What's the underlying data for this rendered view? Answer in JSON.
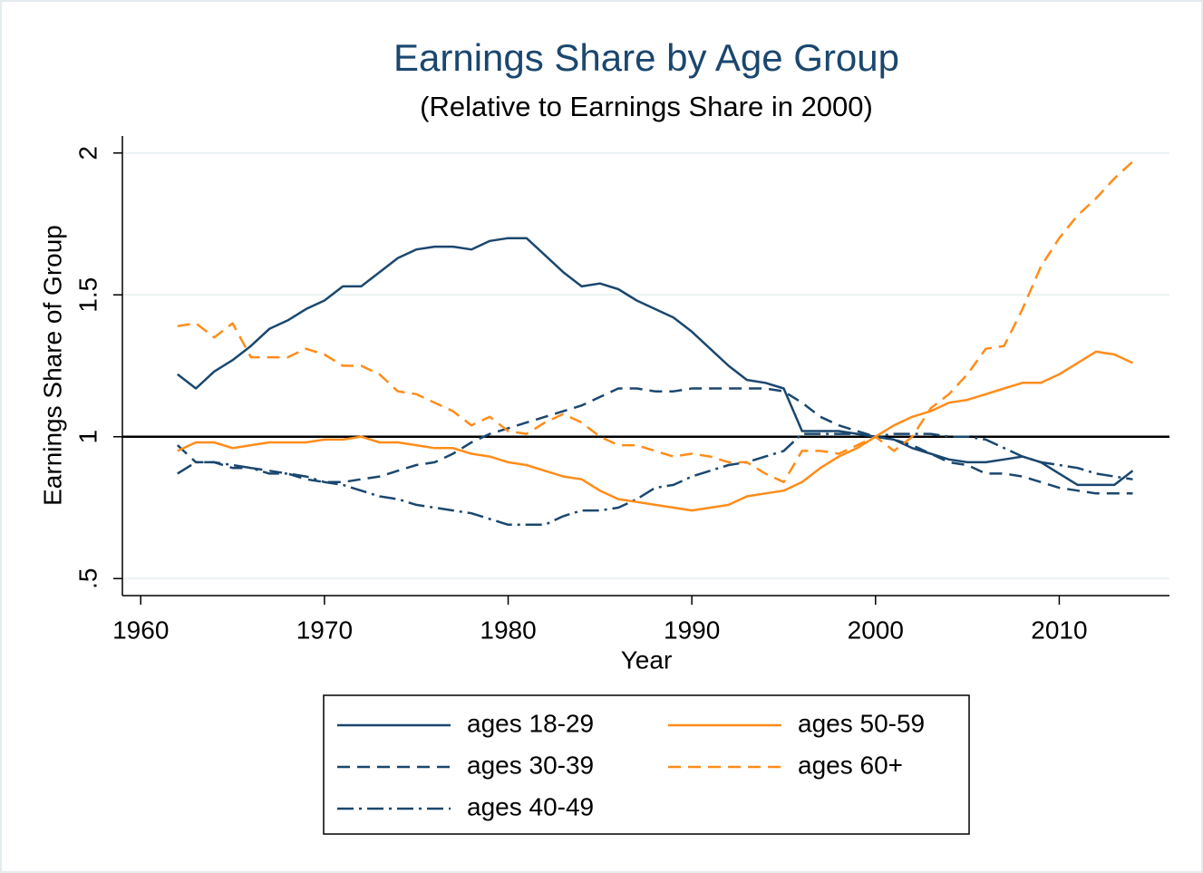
{
  "chart_data": {
    "type": "line",
    "title": "Earnings Share by Age Group",
    "subtitle": "(Relative to Earnings Share in 2000)",
    "x_label": "Year",
    "y_label": "Earnings Share of Group",
    "x": [
      1962,
      1963,
      1964,
      1965,
      1966,
      1967,
      1968,
      1969,
      1970,
      1971,
      1972,
      1973,
      1974,
      1975,
      1976,
      1977,
      1978,
      1979,
      1980,
      1981,
      1982,
      1983,
      1984,
      1985,
      1986,
      1987,
      1988,
      1989,
      1990,
      1991,
      1992,
      1993,
      1994,
      1995,
      1996,
      1997,
      1998,
      1999,
      2000,
      2001,
      2002,
      2003,
      2004,
      2005,
      2006,
      2007,
      2008,
      2009,
      2010,
      2011,
      2012,
      2013,
      2014
    ],
    "series": [
      {
        "name": "ages 18-29",
        "color": "#1a476f",
        "dash": "solid",
        "values": [
          1.22,
          1.17,
          1.23,
          1.27,
          1.32,
          1.38,
          1.41,
          1.45,
          1.48,
          1.53,
          1.53,
          1.58,
          1.63,
          1.66,
          1.67,
          1.67,
          1.66,
          1.69,
          1.7,
          1.7,
          1.64,
          1.58,
          1.53,
          1.54,
          1.52,
          1.48,
          1.45,
          1.42,
          1.37,
          1.31,
          1.25,
          1.2,
          1.19,
          1.17,
          1.02,
          1.02,
          1.02,
          1.01,
          1.0,
          0.99,
          0.96,
          0.94,
          0.92,
          0.91,
          0.91,
          0.92,
          0.93,
          0.91,
          0.87,
          0.83,
          0.83,
          0.83,
          0.88
        ]
      },
      {
        "name": "ages 30-39",
        "color": "#1a476f",
        "dash": "dash",
        "values": [
          0.97,
          0.91,
          0.91,
          0.89,
          0.89,
          0.88,
          0.87,
          0.85,
          0.84,
          0.84,
          0.85,
          0.86,
          0.88,
          0.9,
          0.91,
          0.94,
          0.98,
          1.01,
          1.03,
          1.05,
          1.07,
          1.09,
          1.11,
          1.14,
          1.17,
          1.17,
          1.16,
          1.16,
          1.17,
          1.17,
          1.17,
          1.17,
          1.17,
          1.16,
          1.12,
          1.07,
          1.04,
          1.02,
          1.0,
          0.99,
          0.97,
          0.94,
          0.91,
          0.9,
          0.87,
          0.87,
          0.86,
          0.84,
          0.82,
          0.81,
          0.8,
          0.8,
          0.8
        ]
      },
      {
        "name": "ages 40-49",
        "color": "#1a476f",
        "dash": "dashdot",
        "values": [
          0.87,
          0.91,
          0.91,
          0.9,
          0.89,
          0.87,
          0.87,
          0.86,
          0.84,
          0.83,
          0.81,
          0.79,
          0.78,
          0.76,
          0.75,
          0.74,
          0.73,
          0.71,
          0.69,
          0.69,
          0.69,
          0.72,
          0.74,
          0.74,
          0.75,
          0.78,
          0.82,
          0.83,
          0.86,
          0.88,
          0.9,
          0.91,
          0.93,
          0.95,
          1.01,
          1.01,
          1.01,
          1.01,
          1.0,
          1.01,
          1.01,
          1.01,
          1.0,
          1.0,
          0.99,
          0.96,
          0.93,
          0.91,
          0.9,
          0.89,
          0.87,
          0.86,
          0.85
        ]
      },
      {
        "name": "ages 50-59",
        "color": "#ff8c1a",
        "dash": "solid",
        "values": [
          0.95,
          0.98,
          0.98,
          0.96,
          0.97,
          0.98,
          0.98,
          0.98,
          0.99,
          0.99,
          1.0,
          0.98,
          0.98,
          0.97,
          0.96,
          0.96,
          0.94,
          0.93,
          0.91,
          0.9,
          0.88,
          0.86,
          0.85,
          0.81,
          0.78,
          0.77,
          0.76,
          0.75,
          0.74,
          0.75,
          0.76,
          0.79,
          0.8,
          0.81,
          0.84,
          0.89,
          0.93,
          0.96,
          1.0,
          1.04,
          1.07,
          1.09,
          1.12,
          1.13,
          1.15,
          1.17,
          1.19,
          1.19,
          1.22,
          1.26,
          1.3,
          1.29,
          1.26
        ]
      },
      {
        "name": "ages 60+",
        "color": "#ff8c1a",
        "dash": "dash",
        "values": [
          1.39,
          1.4,
          1.35,
          1.4,
          1.28,
          1.28,
          1.28,
          1.31,
          1.29,
          1.25,
          1.25,
          1.22,
          1.16,
          1.15,
          1.12,
          1.09,
          1.04,
          1.07,
          1.02,
          1.01,
          1.05,
          1.08,
          1.05,
          1.0,
          0.97,
          0.97,
          0.95,
          0.93,
          0.94,
          0.93,
          0.91,
          0.91,
          0.87,
          0.84,
          0.95,
          0.95,
          0.94,
          0.97,
          1.0,
          0.95,
          1.0,
          1.1,
          1.15,
          1.22,
          1.31,
          1.32,
          1.45,
          1.6,
          1.7,
          1.78,
          1.84,
          1.91,
          1.97
        ]
      }
    ],
    "xlim": [
      1959,
      2016
    ],
    "ylim": [
      0.44,
      2.06
    ],
    "xticks": [
      1960,
      1970,
      1980,
      1990,
      2000,
      2010
    ],
    "yticks": [
      {
        "value": 0.5,
        "label": ".5"
      },
      1,
      1.5,
      2
    ],
    "reference_line": 1,
    "grid": true,
    "legend": "bottom"
  }
}
